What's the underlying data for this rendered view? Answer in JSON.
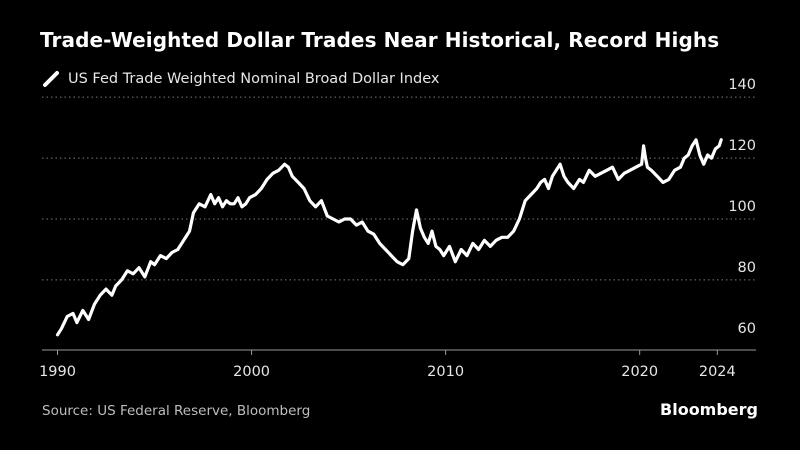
{
  "colors": {
    "background": "#000000",
    "line": "#ffffff",
    "grid": "#7a7a7a",
    "text": "#e6e6e6"
  },
  "brand": "Bloomberg",
  "source": "Source: US Federal Reserve, Bloomberg",
  "chart_data": {
    "type": "line",
    "title": "Trade-Weighted Dollar Trades Near Historical, Record Highs",
    "legend_position": "top-left",
    "grid": "horizontal-dotted",
    "y_axis_side": "right",
    "xlabel": "",
    "ylabel": "",
    "xlim": [
      1989.2,
      2026.2
    ],
    "ylim": [
      57,
      143
    ],
    "x_ticks": [
      1990,
      2000,
      2010,
      2020,
      2024
    ],
    "y_ticks": [
      60,
      80,
      100,
      120,
      140
    ],
    "series": [
      {
        "name": "US Fed Trade Weighted Nominal Broad Dollar Index",
        "x": [
          1990.0,
          1990.2,
          1990.5,
          1990.8,
          1991.0,
          1991.3,
          1991.6,
          1991.9,
          1992.2,
          1992.5,
          1992.8,
          1993.0,
          1993.3,
          1993.6,
          1993.9,
          1994.2,
          1994.5,
          1994.8,
          1995.0,
          1995.3,
          1995.6,
          1995.9,
          1996.2,
          1996.5,
          1996.8,
          1997.0,
          1997.3,
          1997.6,
          1997.9,
          1998.1,
          1998.3,
          1998.5,
          1998.7,
          1998.9,
          1999.1,
          1999.3,
          1999.5,
          1999.7,
          1999.9,
          2000.2,
          2000.5,
          2000.8,
          2001.1,
          2001.4,
          2001.7,
          2001.9,
          2002.1,
          2002.4,
          2002.7,
          2003.0,
          2003.3,
          2003.6,
          2003.9,
          2004.2,
          2004.5,
          2004.8,
          2005.1,
          2005.4,
          2005.7,
          2006.0,
          2006.3,
          2006.6,
          2006.9,
          2007.2,
          2007.5,
          2007.8,
          2008.1,
          2008.3,
          2008.5,
          2008.7,
          2008.9,
          2009.1,
          2009.3,
          2009.5,
          2009.7,
          2009.9,
          2010.2,
          2010.5,
          2010.8,
          2011.1,
          2011.4,
          2011.7,
          2012.0,
          2012.3,
          2012.6,
          2012.9,
          2013.2,
          2013.5,
          2013.8,
          2014.1,
          2014.4,
          2014.7,
          2014.9,
          2015.1,
          2015.3,
          2015.5,
          2015.7,
          2015.9,
          2016.1,
          2016.3,
          2016.6,
          2016.9,
          2017.1,
          2017.4,
          2017.7,
          2018.0,
          2018.3,
          2018.6,
          2018.9,
          2019.2,
          2019.5,
          2019.8,
          2020.1,
          2020.2,
          2020.3,
          2020.4,
          2020.6,
          2020.9,
          2021.2,
          2021.5,
          2021.8,
          2022.1,
          2022.3,
          2022.5,
          2022.7,
          2022.9,
          2023.1,
          2023.3,
          2023.5,
          2023.7,
          2023.9,
          2024.1,
          2024.2
        ],
        "values": [
          62,
          64,
          68,
          69,
          66,
          70,
          67,
          72,
          75,
          77,
          75,
          78,
          80,
          83,
          82,
          84,
          81,
          86,
          85,
          88,
          87,
          89,
          90,
          93,
          96,
          102,
          105,
          104,
          108,
          105,
          107,
          104,
          106,
          105,
          105,
          107,
          104,
          105,
          107,
          108,
          110,
          113,
          115,
          116,
          118,
          117,
          114,
          112,
          110,
          106,
          104,
          106,
          101,
          100,
          99,
          100,
          100,
          98,
          99,
          96,
          95,
          92,
          90,
          88,
          86,
          85,
          87,
          96,
          103,
          97,
          94,
          92,
          96,
          91,
          90,
          88,
          91,
          86,
          90,
          88,
          92,
          90,
          93,
          91,
          93,
          94,
          94,
          96,
          100,
          106,
          108,
          110,
          112,
          113,
          110,
          114,
          116,
          118,
          114,
          112,
          110,
          113,
          112,
          116,
          114,
          115,
          116,
          117,
          113,
          115,
          116,
          117,
          118,
          124,
          120,
          117,
          116,
          114,
          112,
          113,
          116,
          117,
          120,
          121,
          124,
          126,
          121,
          118,
          121,
          120,
          123,
          124,
          126
        ]
      }
    ]
  }
}
